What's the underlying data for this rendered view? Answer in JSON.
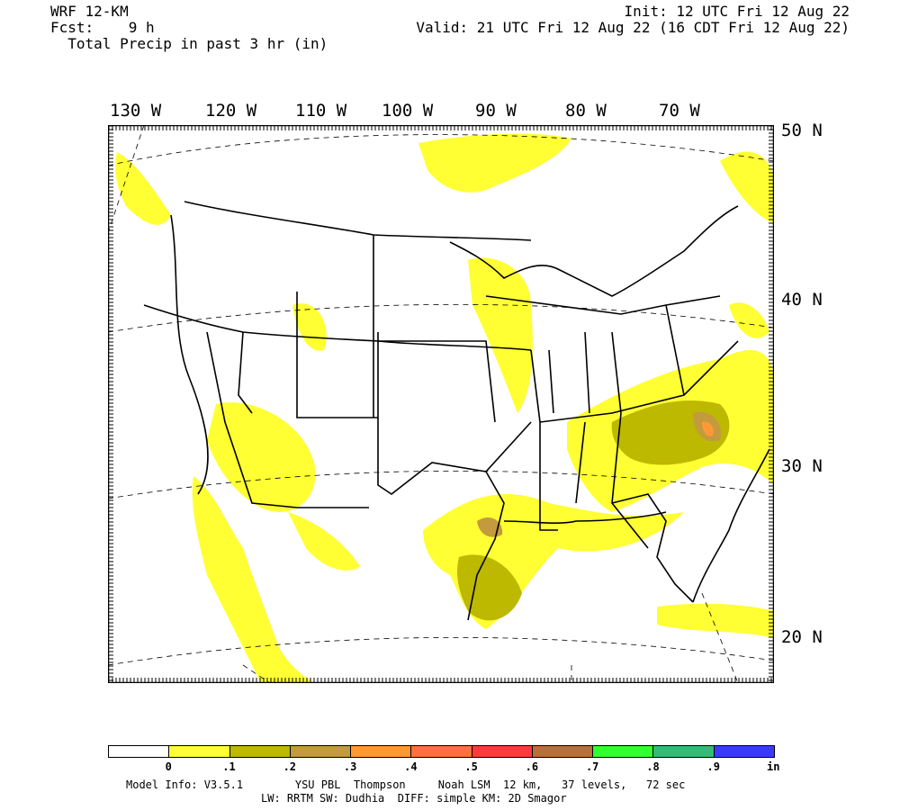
{
  "header": {
    "model": "WRF 12-KM",
    "fcst_label": "Fcst:",
    "fcst_value": "9 h",
    "field": "Total Precip in past 3 hr (in)",
    "init": "Init: 12 UTC Fri 12 Aug 22",
    "valid": "Valid: 21 UTC Fri 12 Aug 22 (16 CDT Fri 12 Aug 22)"
  },
  "lon_labels": [
    "130 W",
    "120 W",
    "110 W",
    "100 W",
    "90 W",
    "80 W",
    "70 W"
  ],
  "lat_labels": [
    "50 N",
    "40 N",
    "30 N",
    "20 N"
  ],
  "legend": {
    "ticks": [
      "0",
      ".1",
      ".2",
      ".3",
      ".4",
      ".5",
      ".6",
      ".7",
      ".8",
      ".9"
    ],
    "unit": "in",
    "colors": [
      "#ffffff",
      "#ffff33",
      "#bdb800",
      "#c39a3e",
      "#ff9933",
      "#ff7040",
      "#ff3a3a",
      "#b87038",
      "#33ff33",
      "#33bb77",
      "#3a3aff"
    ]
  },
  "footer": {
    "line1": "Model Info: V3.5.1        YSU PBL  Thompson     Noah LSM  12 km,   37 levels,   72 sec",
    "line2": "LW: RRTM SW: Dudhia  DIFF: simple KM: 2D Smagor"
  }
}
